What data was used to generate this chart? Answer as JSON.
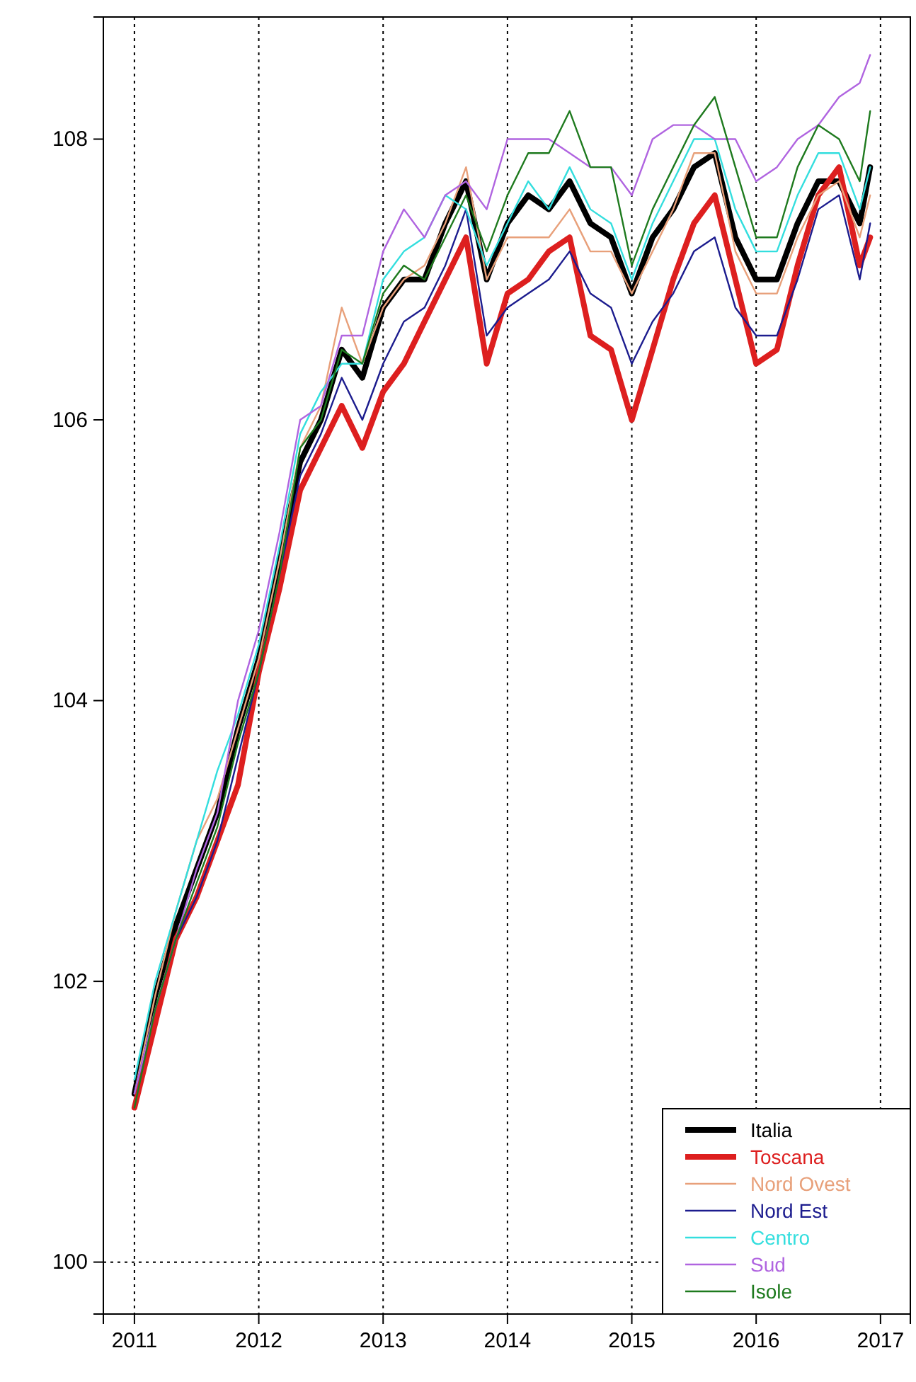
{
  "chart_data": {
    "type": "line",
    "x": [
      2011,
      2011.167,
      2011.333,
      2011.5,
      2011.667,
      2011.833,
      2012,
      2012.167,
      2012.333,
      2012.5,
      2012.667,
      2012.833,
      2013,
      2013.167,
      2013.333,
      2013.5,
      2013.667,
      2013.833,
      2014,
      2014.167,
      2014.333,
      2014.5,
      2014.667,
      2014.833,
      2015,
      2015.167,
      2015.333,
      2015.5,
      2015.667,
      2015.833,
      2016,
      2016.167,
      2016.333,
      2016.5,
      2016.667,
      2016.833,
      2016.917
    ],
    "series": [
      {
        "name": "Italia",
        "color": "#000000",
        "values": [
          101.2,
          101.9,
          102.4,
          102.8,
          103.2,
          103.8,
          104.3,
          105.0,
          105.7,
          106.0,
          106.5,
          106.3,
          106.8,
          107.0,
          107.0,
          107.4,
          107.7,
          107.0,
          107.4,
          107.6,
          107.5,
          107.7,
          107.4,
          107.3,
          106.9,
          107.3,
          107.5,
          107.8,
          107.9,
          107.3,
          107.0,
          107.0,
          107.4,
          107.7,
          107.7,
          107.4,
          107.8
        ]
      },
      {
        "name": "Toscana",
        "color": "#dd1f1f",
        "values": [
          101.1,
          101.7,
          102.3,
          102.6,
          103.0,
          103.4,
          104.2,
          104.8,
          105.5,
          105.8,
          106.1,
          105.8,
          106.2,
          106.4,
          106.7,
          107.0,
          107.3,
          106.4,
          106.9,
          107.0,
          107.2,
          107.3,
          106.6,
          106.5,
          106.0,
          106.5,
          107.0,
          107.4,
          107.6,
          107.0,
          106.4,
          106.5,
          107.1,
          107.6,
          107.8,
          107.1,
          107.3
        ]
      },
      {
        "name": "Nord Ovest",
        "color": "#e8a07a",
        "values": [
          101.2,
          101.9,
          102.5,
          103.0,
          103.3,
          103.8,
          104.3,
          105.0,
          105.8,
          106.1,
          106.8,
          106.4,
          106.8,
          107.0,
          107.1,
          107.4,
          107.8,
          107.0,
          107.3,
          107.3,
          107.3,
          107.5,
          107.2,
          107.2,
          106.9,
          107.2,
          107.5,
          107.9,
          107.9,
          107.2,
          106.9,
          106.9,
          107.3,
          107.6,
          107.7,
          107.3,
          107.6
        ]
      },
      {
        "name": "Nord Est",
        "color": "#1c1c8e",
        "values": [
          101.2,
          101.8,
          102.3,
          102.6,
          103.0,
          103.6,
          104.2,
          104.9,
          105.6,
          105.9,
          106.3,
          106.0,
          106.4,
          106.7,
          106.8,
          107.1,
          107.5,
          106.6,
          106.8,
          106.9,
          107.0,
          107.2,
          106.9,
          106.8,
          106.4,
          106.7,
          106.9,
          107.2,
          107.3,
          106.8,
          106.6,
          106.6,
          107.0,
          107.5,
          107.6,
          107.0,
          107.4
        ]
      },
      {
        "name": "Centro",
        "color": "#33dede",
        "values": [
          101.3,
          102.0,
          102.5,
          103.0,
          103.5,
          103.9,
          104.4,
          105.1,
          105.9,
          106.2,
          106.4,
          106.4,
          107.0,
          107.2,
          107.3,
          107.6,
          107.5,
          107.1,
          107.4,
          107.7,
          107.5,
          107.8,
          107.5,
          107.4,
          107.0,
          107.4,
          107.7,
          108.0,
          108.0,
          107.5,
          107.2,
          107.2,
          107.6,
          107.9,
          107.9,
          107.5,
          107.8
        ]
      },
      {
        "name": "Sud",
        "color": "#b064e0",
        "values": [
          101.2,
          101.8,
          102.3,
          102.8,
          103.2,
          104.0,
          104.5,
          105.2,
          106.0,
          106.1,
          106.6,
          106.6,
          107.2,
          107.5,
          107.3,
          107.6,
          107.7,
          107.5,
          108.0,
          108.0,
          108.0,
          107.9,
          107.8,
          107.8,
          107.6,
          108.0,
          108.1,
          108.1,
          108.0,
          108.0,
          107.7,
          107.8,
          108.0,
          108.1,
          108.3,
          108.4,
          108.6
        ]
      },
      {
        "name": "Isole",
        "color": "#1e7a1e",
        "values": [
          101.1,
          101.8,
          102.3,
          102.7,
          103.1,
          103.7,
          104.2,
          104.9,
          105.8,
          106.0,
          106.5,
          106.4,
          106.9,
          107.1,
          107.0,
          107.3,
          107.6,
          107.2,
          107.6,
          107.9,
          107.9,
          108.2,
          107.8,
          107.8,
          107.1,
          107.5,
          107.8,
          108.1,
          108.3,
          107.8,
          107.3,
          107.3,
          107.8,
          108.1,
          108.0,
          107.7,
          108.2
        ]
      }
    ],
    "xlim": [
      2010.75,
      2017.24
    ],
    "xticks": [
      2011,
      2012,
      2013,
      2014,
      2015,
      2016,
      2017
    ],
    "ylim": [
      99.63,
      108.87
    ],
    "yticks": [
      100,
      102,
      104,
      106,
      108
    ],
    "grid": "x",
    "legend": "bottom right",
    "line_style": "solid",
    "marker": "none",
    "ref_lines": [
      {
        "axis": "y",
        "value": 100,
        "line_style": "dotted"
      }
    ]
  }
}
